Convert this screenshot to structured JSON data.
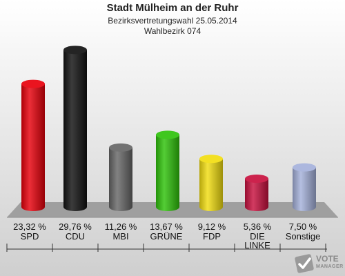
{
  "header": {
    "title": "Stadt Mülheim an der Ruhr",
    "subtitle": "Bezirksvertretungswahl 25.05.2014",
    "district": "Wahlbezirk 074"
  },
  "chart_data": {
    "type": "bar",
    "categories": [
      "SPD",
      "CDU",
      "MBI",
      "GRÜNE",
      "FDP",
      "DIE LINKE",
      "Sonstige"
    ],
    "values": [
      23.32,
      29.76,
      11.26,
      13.67,
      9.12,
      5.36,
      7.5
    ],
    "value_labels": [
      "23,32 %",
      "29,76 %",
      "11,26 %",
      "13,67 %",
      "9,12 %",
      "5,36 %",
      "7,50 %"
    ],
    "label_lines": [
      [
        "SPD"
      ],
      [
        "CDU"
      ],
      [
        "MBI"
      ],
      [
        "GRÜNE"
      ],
      [
        "FDP"
      ],
      [
        "DIE",
        "LINKE"
      ],
      [
        "Sonstige"
      ]
    ],
    "colors": [
      "#e8000b",
      "#111111",
      "#666666",
      "#2ec20a",
      "#f2dd10",
      "#c8103e",
      "#a5b1db"
    ],
    "style": "3d-cylinder",
    "grid": false,
    "legend": "none"
  },
  "logo": {
    "line1": "VOTE",
    "line2": "MANAGER"
  }
}
